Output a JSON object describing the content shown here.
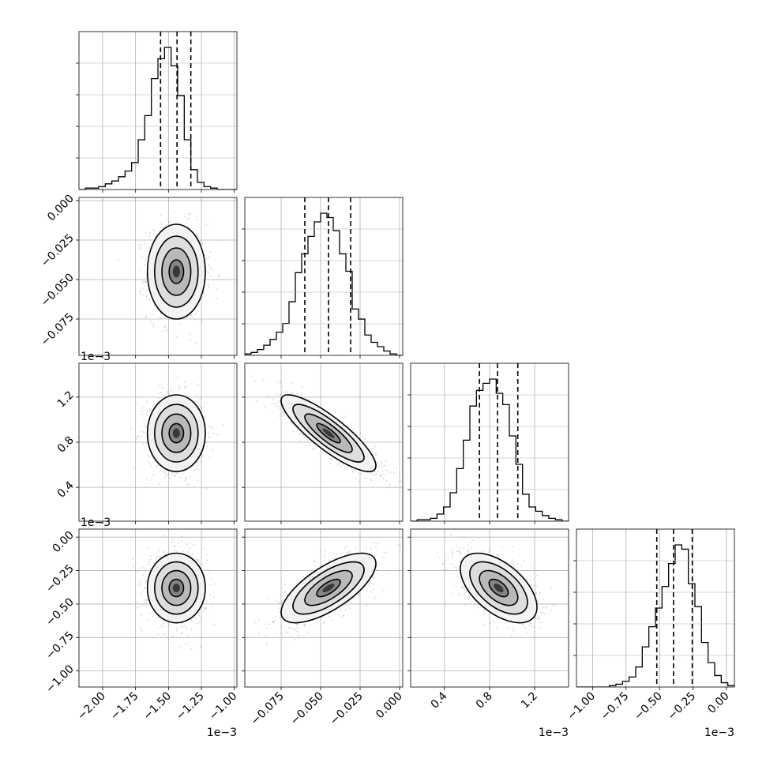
{
  "chart_data": {
    "type": "scatter",
    "title": "",
    "parameters": [
      {
        "ticks": [
          "−2.00",
          "−1.75",
          "−1.50",
          "−1.25",
          "−1.00"
        ],
        "tick_values": [
          -2.0,
          -1.75,
          -1.5,
          -1.25,
          -1.0
        ],
        "range": [
          -2.18,
          -0.98
        ],
        "scale_note": "1e−3",
        "mean": -1.44,
        "sd": 0.11,
        "quantiles": [
          -1.56,
          -1.435,
          -1.33
        ]
      },
      {
        "ticks": [
          "0.000",
          "−0.025",
          "−0.050",
          "−0.075"
        ],
        "tick_values": [
          0.0,
          -0.025,
          -0.05,
          -0.075
        ],
        "range": [
          -0.098,
          0.002
        ],
        "scale_note": "",
        "mean": -0.045,
        "sd": 0.015,
        "quantiles": [
          -0.06,
          -0.045,
          -0.031
        ]
      },
      {
        "ticks": [
          "0.4",
          "0.8",
          "1.2"
        ],
        "tick_values": [
          0.4,
          0.8,
          1.2
        ],
        "range": [
          0.1,
          1.5
        ],
        "scale_note": "1e−3",
        "mean": 0.88,
        "sd": 0.17,
        "quantiles": [
          0.71,
          0.87,
          1.05
        ]
      },
      {
        "ticks": [
          "−1.00",
          "−0.75",
          "−0.50",
          "−0.25",
          "0.00"
        ],
        "tick_values": [
          -1.0,
          -0.75,
          -0.5,
          -0.25,
          0.0
        ],
        "range": [
          -1.12,
          0.06
        ],
        "scale_note": "1e−3",
        "mean": -0.38,
        "sd": 0.13,
        "quantiles": [
          -0.52,
          -0.395,
          -0.255
        ]
      }
    ],
    "correlations": [
      [
        1,
        0,
        0,
        0
      ],
      [
        0,
        1,
        -0.85,
        0.7
      ],
      [
        0,
        -0.85,
        1,
        -0.55
      ],
      [
        0,
        0.7,
        -0.55,
        1
      ]
    ],
    "histograms": [
      [
        0,
        1,
        1,
        2,
        4,
        6,
        9,
        13,
        19,
        35,
        52,
        78,
        92,
        100,
        87,
        66,
        35,
        14,
        5,
        2,
        1,
        0,
        0,
        0
      ],
      [
        1,
        2,
        4,
        7,
        11,
        16,
        22,
        37,
        57,
        70,
        82,
        92,
        98,
        95,
        86,
        70,
        58,
        32,
        25,
        14,
        9,
        6,
        3,
        1,
        0
      ],
      [
        0,
        1,
        1,
        2,
        5,
        10,
        20,
        37,
        57,
        81,
        92,
        97,
        100,
        90,
        82,
        60,
        40,
        19,
        10,
        7,
        4,
        2,
        1,
        0
      ],
      [
        0,
        0,
        0,
        0,
        0,
        1,
        2,
        4,
        7,
        14,
        28,
        42,
        55,
        70,
        86,
        99,
        96,
        72,
        56,
        31,
        17,
        8,
        3,
        1
      ]
    ],
    "quantile_levels": [
      0.16,
      0.5,
      0.84
    ],
    "contour_levels_sigma": [
      0.5,
      1.0,
      1.5,
      2.0
    ],
    "grid": true,
    "legend": "none",
    "colors": {
      "marker": "#000000",
      "density_scatter": "#9a9a9a",
      "grid": "#b0b0b0",
      "frame": "#000000"
    }
  }
}
